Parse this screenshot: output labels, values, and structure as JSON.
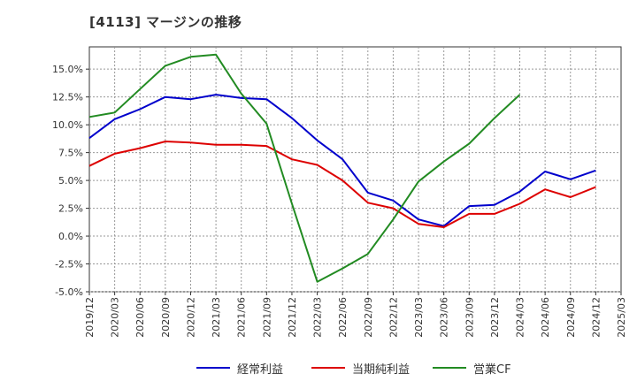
{
  "chart_data": {
    "type": "line",
    "title": "[4113]  マージンの推移",
    "x": [
      "2019/12",
      "2020/03",
      "2020/06",
      "2020/09",
      "2020/12",
      "2021/03",
      "2021/06",
      "2021/09",
      "2021/12",
      "2022/03",
      "2022/06",
      "2022/09",
      "2022/12",
      "2023/03",
      "2023/06",
      "2023/09",
      "2023/12",
      "2024/03",
      "2024/06",
      "2024/09",
      "2024/12",
      "2025/03"
    ],
    "yticks": [
      "15.0%",
      "12.5%",
      "10.0%",
      "7.5%",
      "5.0%",
      "2.5%",
      "0.0%",
      "-2.5%",
      "-5.0%"
    ],
    "ylim": [
      -5.0,
      17.0
    ],
    "grid": true,
    "legend_position": "bottom",
    "series": [
      {
        "name": "経常利益",
        "color": "#0000cc",
        "values": [
          8.8,
          10.5,
          11.4,
          12.5,
          12.3,
          12.7,
          12.4,
          12.3,
          10.6,
          8.6,
          6.9,
          3.9,
          3.2,
          1.5,
          0.9,
          2.7,
          2.8,
          4.0,
          5.8,
          5.1,
          5.9,
          null
        ]
      },
      {
        "name": "当期純利益",
        "color": "#dd0000",
        "values": [
          6.3,
          7.4,
          7.9,
          8.5,
          8.4,
          8.2,
          8.2,
          8.1,
          6.9,
          6.4,
          5.0,
          3.0,
          2.5,
          1.1,
          0.8,
          2.0,
          2.0,
          2.9,
          4.2,
          3.5,
          4.4,
          null
        ]
      },
      {
        "name": "営業CF",
        "color": "#228b22",
        "values": [
          10.7,
          11.1,
          13.2,
          15.3,
          16.1,
          16.3,
          12.8,
          10.1,
          2.9,
          -4.1,
          -2.9,
          -1.6,
          1.5,
          4.9,
          6.7,
          8.3,
          10.6,
          12.7,
          null,
          null,
          null,
          null
        ]
      }
    ]
  }
}
